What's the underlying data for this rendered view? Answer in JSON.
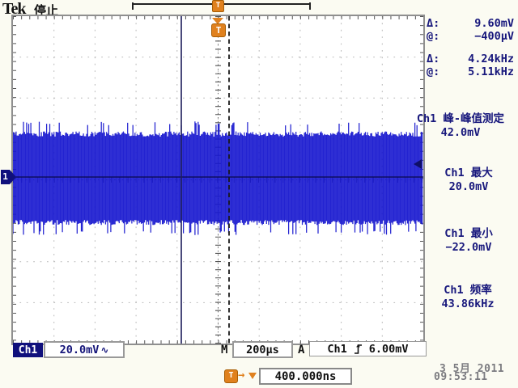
{
  "header": {
    "logo": "Tek",
    "status": "停止"
  },
  "cursor_readout": {
    "rows": [
      {
        "label": "Δ:",
        "value": "9.60mV"
      },
      {
        "label": "@:",
        "value": "−400μV"
      },
      {
        "label": "Δ:",
        "value": "4.24kHz"
      },
      {
        "label": "@:",
        "value": "5.11kHz"
      }
    ]
  },
  "measurements": [
    {
      "label": "Ch1 峰-峰值测定",
      "value": "42.0mV"
    },
    {
      "label": "Ch1 最大",
      "value": "20.0mV"
    },
    {
      "label": "Ch1 最小",
      "value": "−22.0mV"
    },
    {
      "label": "Ch1 频率",
      "value": "43.86kHz"
    }
  ],
  "channel": {
    "badge": "Ch1",
    "scale": "20.0mV",
    "coupling": "∿",
    "marker": "1"
  },
  "timebase": {
    "label": "M",
    "value": "200μs"
  },
  "trigger": {
    "label": "A",
    "source": "Ch1",
    "slope": "rising",
    "level": "6.00mV",
    "symbol": "T"
  },
  "delay": {
    "value": "400.000ns",
    "arrow": "→"
  },
  "datetime": {
    "date": "3 5月 2011",
    "time": "09:53:11"
  },
  "colors": {
    "waveform": "#1717cf",
    "accent_orange": "#e0811e",
    "readout_navy": "#17177c"
  }
}
